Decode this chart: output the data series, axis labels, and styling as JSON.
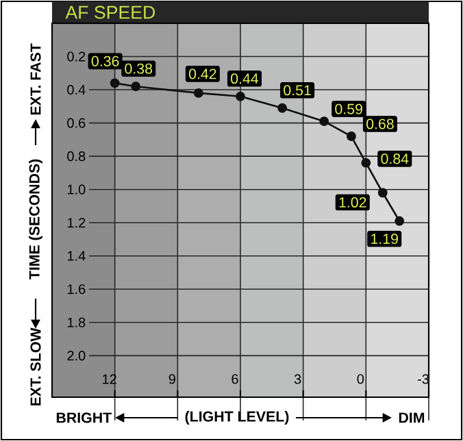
{
  "chart_data": {
    "type": "line",
    "title": "AF SPEED",
    "ylabel": "TIME (SECONDS)",
    "xlabel": "(LIGHT LEVEL)",
    "annotations": [
      "EXT. FAST",
      "EXT. SLOW",
      "BRIGHT",
      "DIM"
    ],
    "x": [
      12,
      11,
      8,
      6,
      4,
      2,
      0.7,
      0,
      -0.8,
      -1.6
    ],
    "series": [
      {
        "color": "#111111",
        "values": [
          0.36,
          0.38,
          0.42,
          0.44,
          0.51,
          0.59,
          0.68,
          0.84,
          1.02,
          1.19
        ]
      }
    ],
    "xlim": [
      15,
      -3
    ],
    "xticks": [
      12,
      9,
      6,
      3,
      0,
      -3
    ],
    "ylim": [
      2.25,
      0
    ],
    "yticks": [
      0.2,
      0.4,
      0.6,
      0.8,
      {
        "value": 1,
        "label": "1.0"
      },
      1.2,
      1.4,
      1.6,
      1.8,
      {
        "value": 2,
        "label": "2.0"
      }
    ],
    "bands": [
      {
        "axis": "x",
        "from": 15,
        "to": 12,
        "color": "#8c8c8c"
      },
      {
        "axis": "x",
        "from": 12,
        "to": 9,
        "color": "#9d9d9d"
      },
      {
        "axis": "x",
        "from": 9,
        "to": 6,
        "color": "#adadad"
      },
      {
        "axis": "x",
        "from": 6,
        "to": 3,
        "color": "#bdbfbf"
      },
      {
        "axis": "x",
        "from": 3,
        "to": 0,
        "color": "#cdcdcd"
      },
      {
        "axis": "x",
        "from": 0,
        "to": -3,
        "color": "#dadada"
      }
    ],
    "grid": true,
    "marker": "circle",
    "line_style": "solid",
    "data_labels": true
  }
}
